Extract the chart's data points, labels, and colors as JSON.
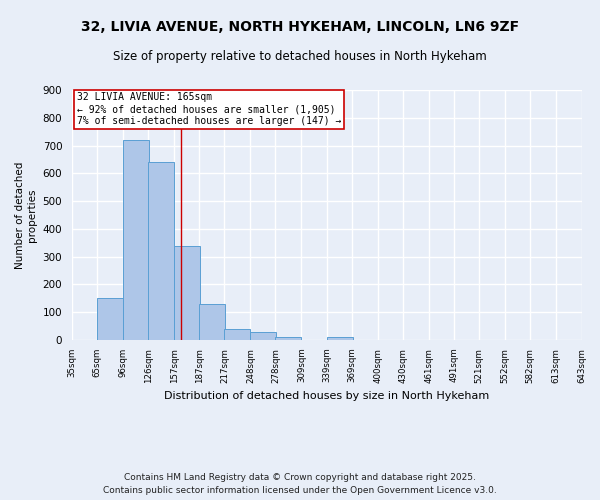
{
  "title": "32, LIVIA AVENUE, NORTH HYKEHAM, LINCOLN, LN6 9ZF",
  "subtitle": "Size of property relative to detached houses in North Hykeham",
  "xlabel": "Distribution of detached houses by size in North Hykeham",
  "ylabel": "Number of detached\nproperties",
  "footer1": "Contains HM Land Registry data © Crown copyright and database right 2025.",
  "footer2": "Contains public sector information licensed under the Open Government Licence v3.0.",
  "bar_left_edges": [
    35,
    65,
    96,
    126,
    157,
    187,
    217,
    248,
    278,
    309,
    339,
    369,
    400,
    430,
    461,
    491,
    521,
    552,
    582,
    613
  ],
  "bar_heights": [
    0,
    150,
    720,
    640,
    340,
    130,
    40,
    30,
    10,
    0,
    10,
    0,
    0,
    0,
    0,
    0,
    0,
    0,
    0,
    0
  ],
  "bin_width": 31,
  "bar_color": "#aec6e8",
  "bar_edge_color": "#5a9fd4",
  "vline_x": 165,
  "vline_color": "#cc0000",
  "annotation_text": "32 LIVIA AVENUE: 165sqm\n← 92% of detached houses are smaller (1,905)\n7% of semi-detached houses are larger (147) →",
  "annotation_box_color": "#cc0000",
  "ylim": [
    0,
    900
  ],
  "yticks": [
    0,
    100,
    200,
    300,
    400,
    500,
    600,
    700,
    800,
    900
  ],
  "xtick_labels": [
    "35sqm",
    "65sqm",
    "96sqm",
    "126sqm",
    "157sqm",
    "187sqm",
    "217sqm",
    "248sqm",
    "278sqm",
    "309sqm",
    "339sqm",
    "369sqm",
    "400sqm",
    "430sqm",
    "461sqm",
    "491sqm",
    "521sqm",
    "552sqm",
    "582sqm",
    "613sqm",
    "643sqm"
  ],
  "bg_color": "#e8eef8",
  "plot_bg_color": "#e8eef8",
  "grid_color": "#ffffff",
  "title_fontsize": 10,
  "subtitle_fontsize": 8.5,
  "footer_fontsize": 6.5
}
